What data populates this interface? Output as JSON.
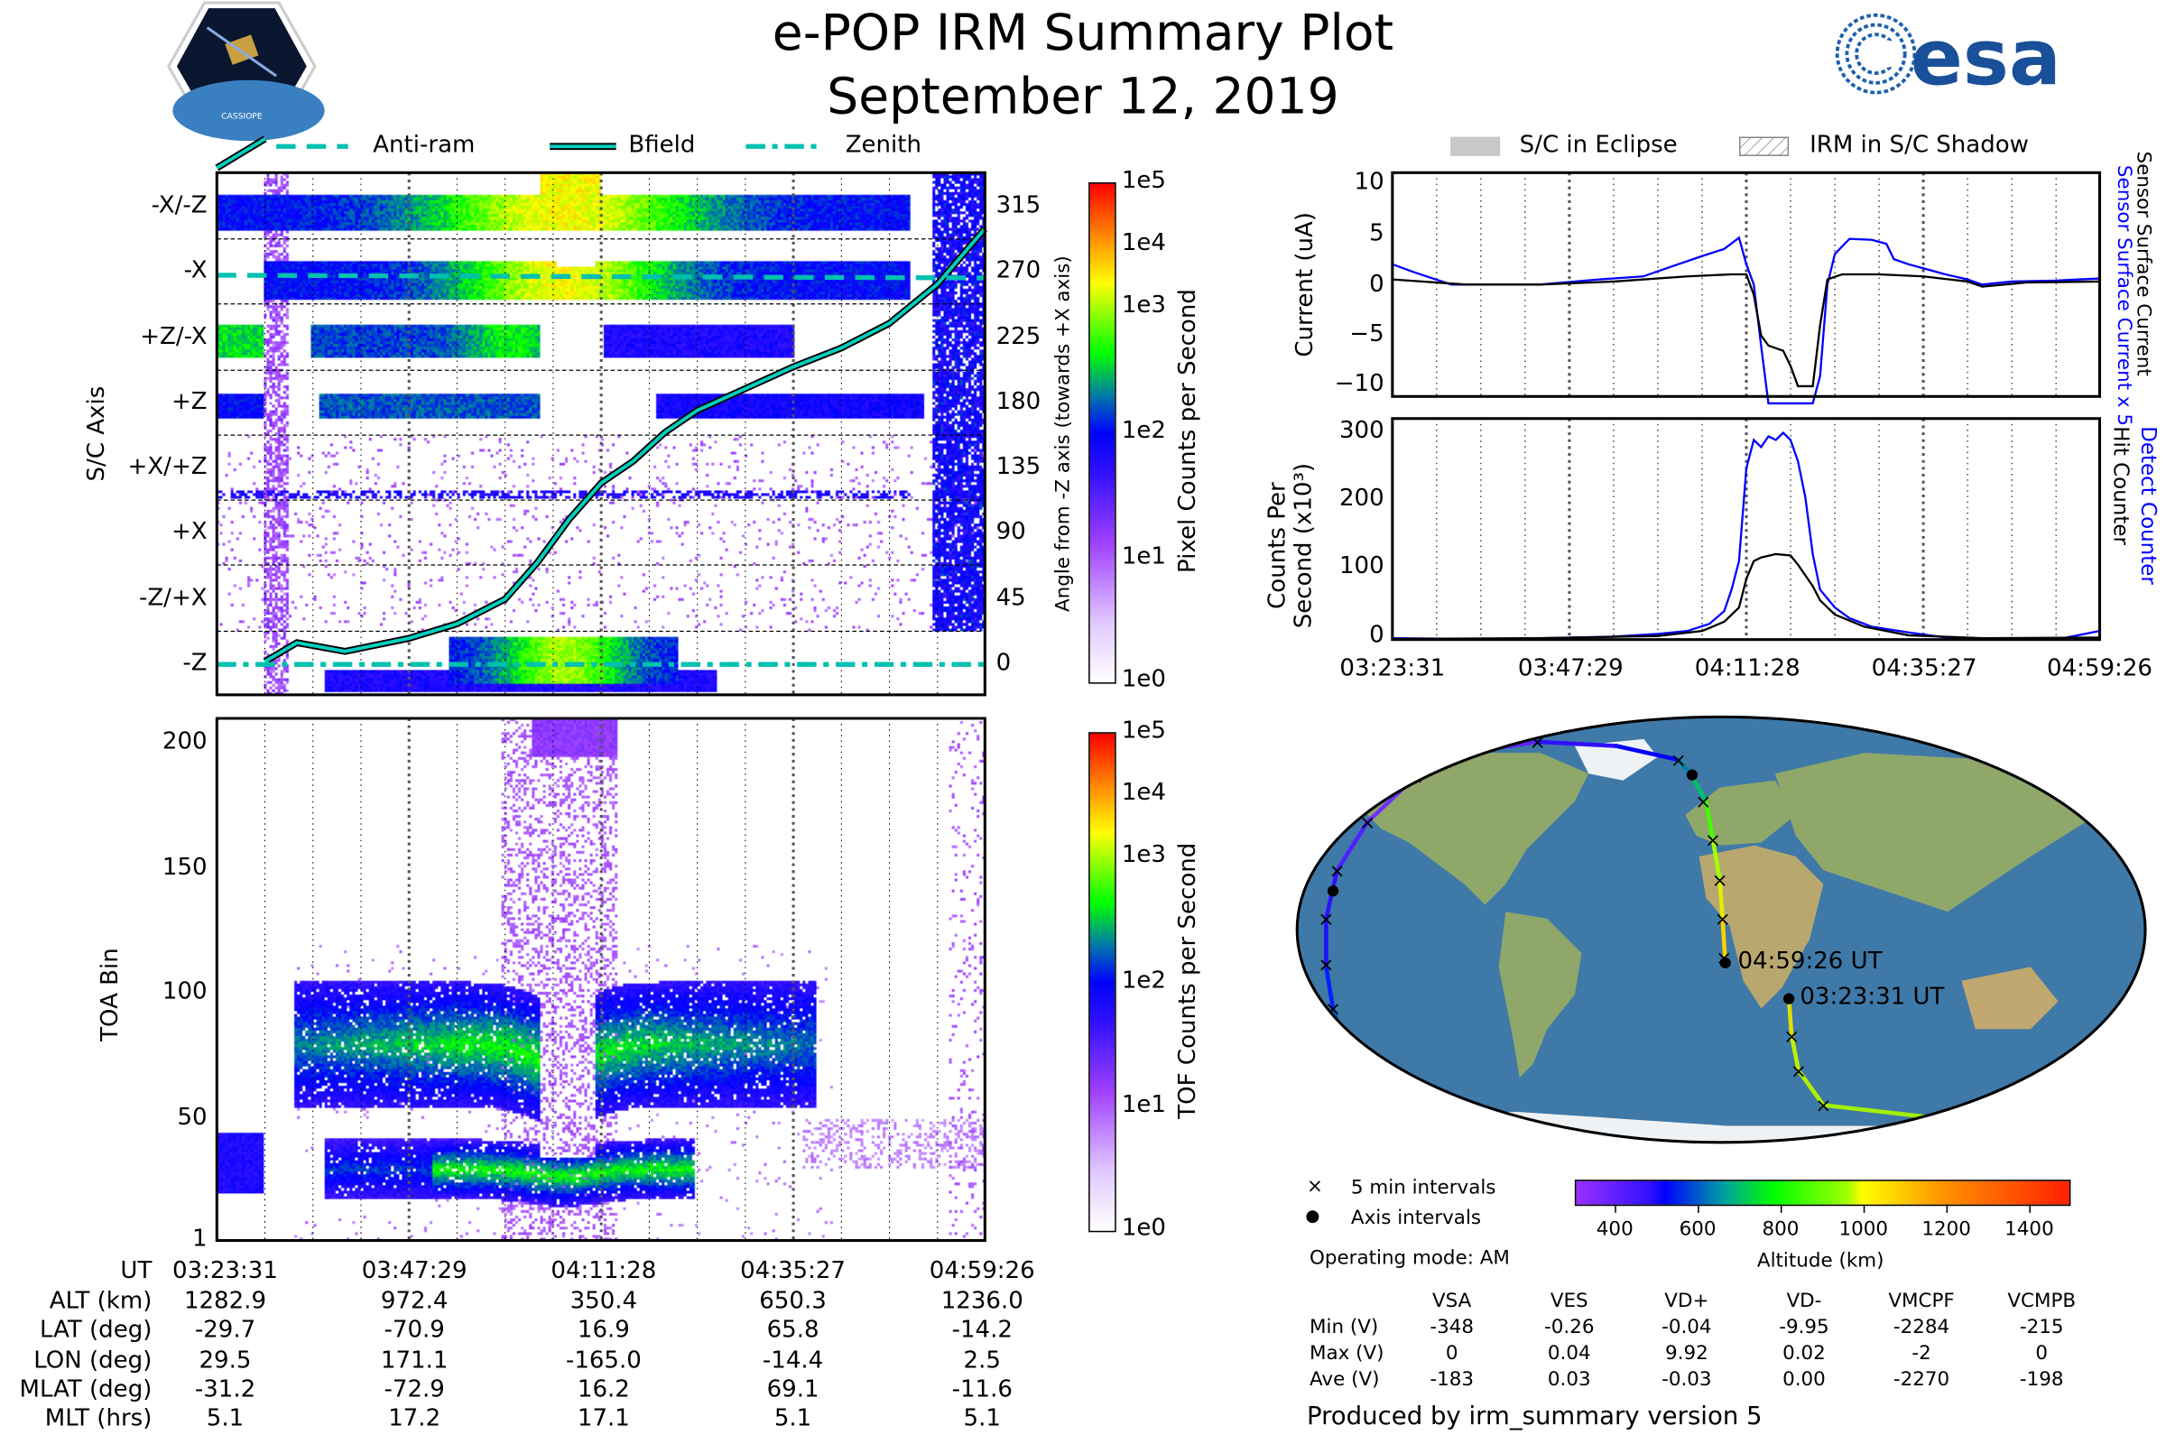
{
  "header": {
    "title": "e-POP IRM Summary Plot",
    "subtitle": "September 12, 2019",
    "logo_left_text": "CASSIOPE",
    "logo_right_text": "esa"
  },
  "legend_left": {
    "anti_ram": "Anti-ram",
    "bfield": "Bfield",
    "zenith": "Zenith"
  },
  "legend_right": {
    "eclipse": "S/C in Eclipse",
    "shadow": "IRM in S/C Shadow"
  },
  "colors": {
    "bfield_line": "#00d0c0",
    "series_blue": "#0000ff",
    "series_black": "#000000",
    "eclipse": "#c8c8c8"
  },
  "info_table": {
    "row_labels": [
      "UT",
      "ALT (km)",
      "LAT (deg)",
      "LON (deg)",
      "MLAT (deg)",
      "MLT (hrs)"
    ],
    "columns": [
      [
        "03:23:31",
        "1282.9",
        "-29.7",
        "29.5",
        "-31.2",
        "5.1"
      ],
      [
        "03:47:29",
        "972.4",
        "-70.9",
        "171.1",
        "-72.9",
        "17.2"
      ],
      [
        "04:11:28",
        "350.4",
        "16.9",
        "-165.0",
        "16.2",
        "17.1"
      ],
      [
        "04:35:27",
        "650.3",
        "65.8",
        "-14.4",
        "69.1",
        "5.1"
      ],
      [
        "04:59:26",
        "1236.0",
        "-14.2",
        "2.5",
        "-11.6",
        "5.1"
      ]
    ]
  },
  "map": {
    "start_label": "03:23:31 UT",
    "end_label": "04:59:26 UT",
    "legend_5min": "5 min intervals",
    "legend_axis": "Axis intervals",
    "legend_5min_marker": "×",
    "legend_axis_marker": "●",
    "operating_mode": "Operating mode: AM",
    "colorbar_ticks": [
      "400",
      "600",
      "800",
      "1000",
      "1200",
      "1400"
    ],
    "colorbar_label": "Altitude (km)"
  },
  "voltages": {
    "headers": [
      "VSA",
      "VES",
      "VD+",
      "VD-",
      "VMCPF",
      "VCMPB"
    ],
    "rows": [
      {
        "label": "Min (V)",
        "values": [
          "-348",
          "-0.26",
          "-0.04",
          "-9.95",
          "-2284",
          "-215"
        ]
      },
      {
        "label": "Max (V)",
        "values": [
          "0",
          "0.04",
          "9.92",
          "0.02",
          "-2",
          "0"
        ]
      },
      {
        "label": "Ave (V)",
        "values": [
          "-183",
          "0.03",
          "-0.03",
          "0.00",
          "-2270",
          "-198"
        ]
      }
    ]
  },
  "footer": "Produced by irm_summary version 5",
  "chart_data": [
    {
      "type": "heatmap",
      "name": "pixel-counts",
      "ylabel": "S/C Axis",
      "categories": [
        "-X/-Z",
        "-X",
        "+Z/-X",
        "+Z",
        "+X/+Z",
        "+X",
        "-Z/+X",
        "-Z"
      ],
      "right_ylabel": "Angle from -Z axis (towards +X axis)",
      "right_ticks": [
        "315",
        "270",
        "225",
        "180",
        "135",
        "90",
        "45",
        "0"
      ],
      "colorbar_label": "Pixel Counts per Second",
      "colorbar_ticks": [
        "1e5",
        "1e4",
        "1e3",
        "1e2",
        "1e1",
        "1e0"
      ],
      "x_minutes_range": [
        0,
        95.92
      ],
      "bfield_angle": {
        "x": [
          0,
          3,
          6,
          10,
          16,
          24,
          30,
          36,
          40,
          44,
          48,
          52,
          56,
          60,
          66,
          72,
          78,
          84,
          90,
          95.9
        ],
        "y": [
          342,
          352,
          362,
          375,
          9,
          18,
          28,
          45,
          70,
          100,
          125,
          140,
          160,
          175,
          190,
          205,
          218,
          235,
          262,
          300
        ]
      },
      "anti_ram_angle": 270,
      "zenith_angle": 0
    },
    {
      "type": "heatmap",
      "name": "tof-counts",
      "ylabel": "TOA Bin",
      "yticks": [
        "200",
        "150",
        "100",
        "50",
        "1"
      ],
      "ylim": [
        1,
        210
      ],
      "colorbar_label": "TOF Counts per Second",
      "colorbar_ticks": [
        "1e5",
        "1e4",
        "1e3",
        "1e2",
        "1e1",
        "1e0"
      ]
    },
    {
      "type": "line",
      "name": "current",
      "ylabel": "Current (uA)",
      "yticks": [
        "10",
        "5",
        "0",
        "−5",
        "−10"
      ],
      "ylim": [
        -11,
        11
      ],
      "xlim": [
        0,
        95.92
      ],
      "series": [
        {
          "name": "Sensor Surface Current x 5",
          "color": "#0000ff",
          "x": [
            0,
            3,
            8,
            12,
            20,
            28,
            34,
            38,
            42,
            45,
            47,
            48,
            49,
            50,
            51,
            52,
            53,
            56,
            57,
            58,
            59,
            60,
            62,
            65,
            67,
            68,
            70,
            72,
            75,
            78,
            80,
            84,
            90,
            95.9
          ],
          "y": [
            2,
            1.2,
            0,
            0,
            0,
            0.5,
            0.8,
            1.8,
            2.8,
            3.5,
            4.6,
            2,
            0,
            -6,
            -12,
            -12,
            -12,
            -12,
            -12,
            -9,
            0,
            3,
            4.5,
            4.4,
            4,
            2.5,
            2,
            1.6,
            1,
            0.5,
            0,
            0.3,
            0.4,
            0.6
          ]
        },
        {
          "name": "Sensor Surface Current",
          "color": "#000000",
          "x": [
            0,
            10,
            20,
            30,
            40,
            46,
            48,
            49,
            50,
            51,
            53,
            54,
            55,
            56,
            57,
            58,
            59,
            61,
            66,
            72,
            78,
            80,
            86,
            95.9
          ],
          "y": [
            0.5,
            0,
            0,
            0.3,
            0.8,
            1,
            1,
            -1,
            -5,
            -6,
            -6.5,
            -8,
            -10,
            -10,
            -10,
            -4,
            0.5,
            1,
            1,
            0.8,
            0.3,
            -0.2,
            0.2,
            0.3
          ]
        }
      ]
    },
    {
      "type": "line",
      "name": "counts",
      "ylabel_line1": "Counts Per",
      "ylabel_line2": "Second (x10³)",
      "yticks": [
        "300",
        "200",
        "100",
        "0"
      ],
      "ylim": [
        0,
        310
      ],
      "xlim": [
        0,
        95.92
      ],
      "xtick_labels": [
        "03:23:31",
        "03:47:29",
        "04:11:28",
        "04:35:27",
        "04:59:26"
      ],
      "series": [
        {
          "name": "Detect Counter",
          "color": "#0000ff",
          "x": [
            0,
            10,
            20,
            30,
            36,
            40,
            43,
            45,
            46,
            47,
            48,
            49,
            50,
            51,
            52,
            53,
            54,
            55,
            56,
            57,
            58,
            60,
            62,
            65,
            70,
            75,
            80,
            90,
            93,
            95.9
          ],
          "y": [
            2,
            1,
            2,
            4,
            8,
            12,
            22,
            40,
            70,
            110,
            240,
            280,
            270,
            285,
            280,
            290,
            280,
            250,
            200,
            120,
            70,
            45,
            30,
            18,
            10,
            3,
            1,
            0,
            6,
            12
          ]
        },
        {
          "name": "Hit Counter",
          "color": "#000000",
          "x": [
            0,
            20,
            36,
            42,
            45,
            47,
            48,
            49,
            50,
            52,
            54,
            55,
            56,
            57,
            58,
            60,
            64,
            70,
            80,
            95.9
          ],
          "y": [
            1,
            2,
            5,
            12,
            25,
            45,
            85,
            110,
            115,
            120,
            118,
            105,
            90,
            75,
            55,
            35,
            18,
            6,
            2,
            3
          ]
        }
      ]
    }
  ]
}
